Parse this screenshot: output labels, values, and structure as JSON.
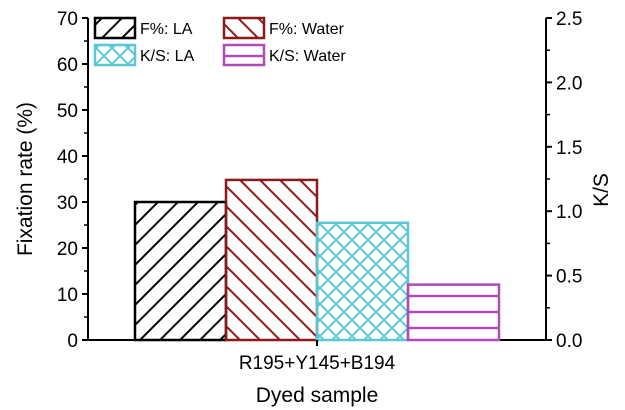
{
  "chart_data": {
    "type": "bar",
    "categories": [
      "R195+Y145+B194"
    ],
    "xlabel": "Dyed sample",
    "ylabel": "Fixation rate (%)",
    "y2label": "K/S",
    "ylim": [
      0,
      70
    ],
    "y2lim": [
      0,
      2.5
    ],
    "yticks": [
      0,
      10,
      20,
      30,
      40,
      50,
      60,
      70
    ],
    "y2ticks": [
      "0.0",
      "0.5",
      "1.0",
      "1.5",
      "2.0",
      "2.5"
    ],
    "grid": false,
    "legend_position": "top-left",
    "series": [
      {
        "name": "F%: LA",
        "axis": "left",
        "values": [
          30
        ],
        "color": "#000000",
        "pattern": "diagonal-up"
      },
      {
        "name": "F%: Water",
        "axis": "left",
        "values": [
          34.8
        ],
        "color": "#8b1a1a",
        "pattern": "diagonal-down"
      },
      {
        "name": "K/S: LA",
        "axis": "right",
        "values": [
          0.91
        ],
        "color": "#5bc8d8",
        "pattern": "crosshatch"
      },
      {
        "name": "K/S: Water",
        "axis": "right",
        "values": [
          0.43
        ],
        "color": "#b04ab8",
        "pattern": "horizontal"
      }
    ]
  }
}
